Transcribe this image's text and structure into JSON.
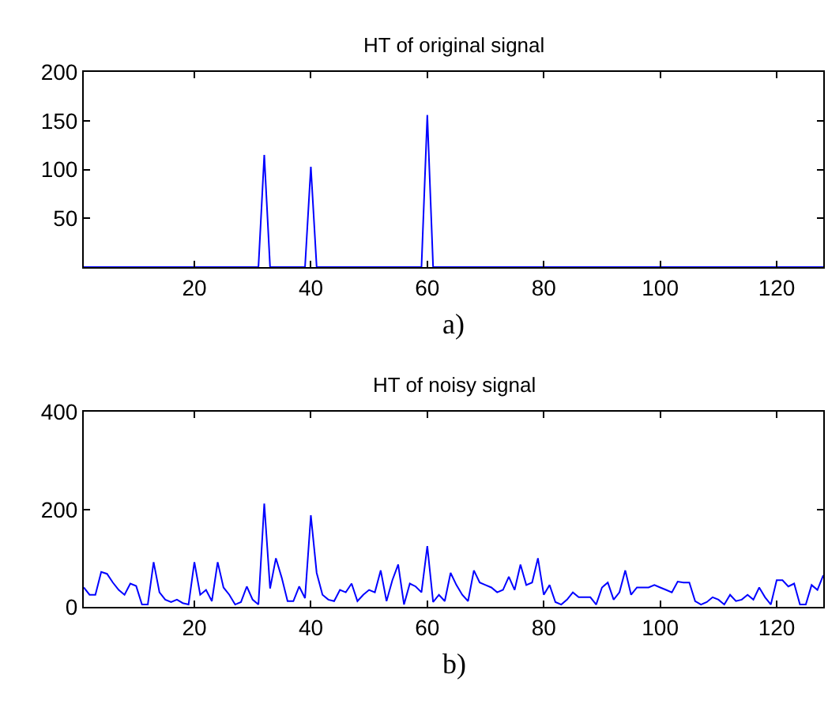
{
  "chart_data": [
    {
      "type": "line",
      "title": "HT of original signal",
      "annotations": [
        "a)"
      ],
      "color": "#0000ff",
      "marker": "none",
      "line_style": "solid",
      "x": [
        1,
        31,
        32,
        33,
        39,
        40,
        41,
        59,
        60,
        61,
        128
      ],
      "values": [
        0,
        0,
        115,
        0,
        0,
        103,
        0,
        0,
        156,
        0,
        0
      ],
      "xlim": [
        1,
        128
      ],
      "xticks": [
        20,
        40,
        60,
        80,
        100,
        120
      ],
      "ylim": [
        0,
        200
      ],
      "yticks": [
        50,
        100,
        150,
        200
      ]
    },
    {
      "type": "line",
      "title": "HT of noisy signal",
      "annotations": [
        "b)"
      ],
      "color": "#0000ff",
      "marker": "none",
      "line_style": "solid",
      "x": [
        1,
        2,
        3,
        4,
        5,
        6,
        7,
        8,
        9,
        10,
        11,
        12,
        13,
        14,
        15,
        16,
        17,
        18,
        19,
        20,
        21,
        22,
        23,
        24,
        25,
        26,
        27,
        28,
        29,
        30,
        31,
        32,
        33,
        34,
        35,
        36,
        37,
        38,
        39,
        40,
        41,
        42,
        43,
        44,
        45,
        46,
        47,
        48,
        49,
        50,
        51,
        52,
        53,
        54,
        55,
        56,
        57,
        58,
        59,
        60,
        61,
        62,
        63,
        64,
        65,
        66,
        67,
        68,
        69,
        70,
        71,
        72,
        73,
        74,
        75,
        76,
        77,
        78,
        79,
        80,
        81,
        82,
        83,
        84,
        85,
        86,
        87,
        88,
        89,
        90,
        91,
        92,
        93,
        94,
        95,
        96,
        97,
        98,
        99,
        100,
        101,
        102,
        103,
        104,
        105,
        106,
        107,
        108,
        109,
        110,
        111,
        112,
        113,
        114,
        115,
        116,
        117,
        118,
        119,
        120,
        121,
        122,
        123,
        124,
        125,
        126,
        127,
        128
      ],
      "values": [
        40,
        25,
        25,
        72,
        68,
        50,
        35,
        25,
        48,
        43,
        5,
        5,
        92,
        30,
        15,
        10,
        15,
        8,
        5,
        92,
        25,
        35,
        12,
        92,
        40,
        25,
        5,
        10,
        42,
        15,
        5,
        212,
        38,
        100,
        60,
        12,
        12,
        42,
        18,
        188,
        70,
        25,
        15,
        12,
        35,
        30,
        48,
        12,
        25,
        35,
        30,
        75,
        12,
        55,
        87,
        5,
        48,
        42,
        30,
        125,
        10,
        25,
        12,
        70,
        45,
        25,
        12,
        75,
        50,
        45,
        40,
        30,
        35,
        62,
        35,
        87,
        45,
        50,
        100,
        25,
        45,
        10,
        5,
        15,
        30,
        20,
        20,
        20,
        5,
        40,
        50,
        15,
        30,
        75,
        25,
        40,
        40,
        40,
        45,
        40,
        35,
        30,
        52,
        50,
        50,
        12,
        5,
        10,
        20,
        15,
        5,
        25,
        12,
        15,
        25,
        15,
        40,
        20,
        5,
        55,
        55,
        42,
        48,
        5,
        5,
        45,
        35,
        65
      ],
      "xlim": [
        1,
        128
      ],
      "xticks": [
        20,
        40,
        60,
        80,
        100,
        120
      ],
      "ylim": [
        0,
        400
      ],
      "yticks": [
        0,
        200,
        400
      ]
    }
  ]
}
